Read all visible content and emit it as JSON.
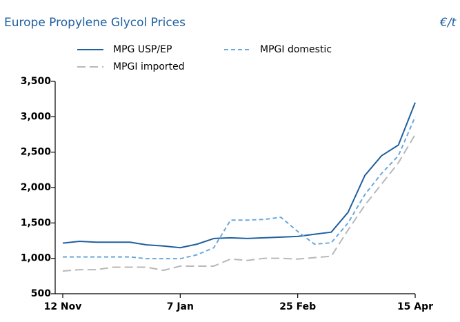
{
  "chart_data": {
    "type": "line",
    "title": "Europe Propylene Glycol Prices",
    "unit": "€/t",
    "categories": [
      "12 Nov",
      null,
      null,
      null,
      null,
      null,
      null,
      "7 Jan",
      null,
      null,
      null,
      null,
      null,
      null,
      "25 Feb",
      null,
      null,
      null,
      null,
      null,
      null,
      "15 Apr"
    ],
    "series": [
      {
        "name": "MPG USP/EP",
        "color": "#1f5fa0",
        "dash": "solid",
        "values": [
          1215,
          1240,
          1228,
          1228,
          1228,
          1190,
          1175,
          1150,
          1200,
          1280,
          1290,
          1280,
          1290,
          1300,
          1310,
          1340,
          1370,
          1650,
          2170,
          2450,
          2600,
          3200
        ]
      },
      {
        "name": "MPGI domestic",
        "color": "#6aa8dc",
        "dash": "dashed",
        "values": [
          1020,
          1020,
          1020,
          1020,
          1020,
          995,
          995,
          995,
          1050,
          1150,
          1540,
          1540,
          1550,
          1580,
          1380,
          1200,
          1220,
          1500,
          1900,
          2200,
          2450,
          3000
        ]
      },
      {
        "name": "MPGI imported",
        "color": "#b8b8b8",
        "dash": "longdash",
        "values": [
          820,
          840,
          840,
          875,
          875,
          875,
          830,
          890,
          890,
          890,
          990,
          970,
          1000,
          1000,
          990,
          1010,
          1030,
          1400,
          1750,
          2050,
          2350,
          2750
        ]
      }
    ],
    "ylim": [
      500,
      3500
    ],
    "yticks": [
      {
        "value": 500,
        "label": "500"
      },
      {
        "value": 1000,
        "label": "1,000"
      },
      {
        "value": 1500,
        "label": "1,500"
      },
      {
        "value": 2000,
        "label": "2,000"
      },
      {
        "value": 2500,
        "label": "2,500"
      },
      {
        "value": 3000,
        "label": "3,000"
      },
      {
        "value": 3500,
        "label": "3,500"
      }
    ],
    "grid": false
  }
}
